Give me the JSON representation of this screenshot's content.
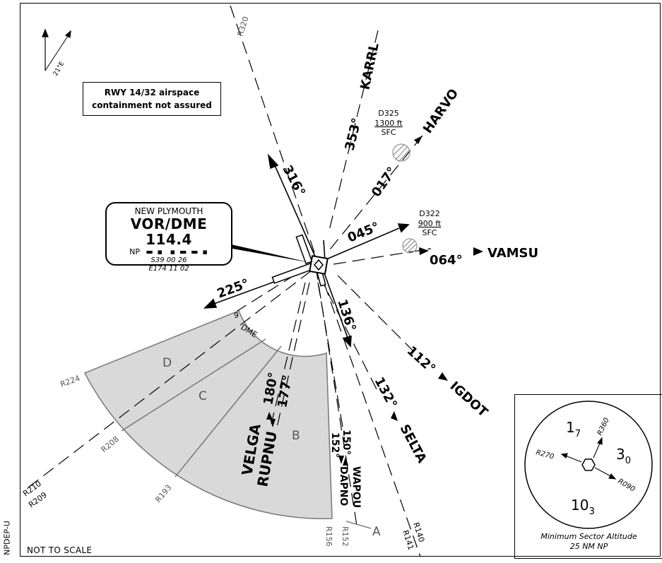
{
  "chart": {
    "side_id": "NPDEP-U",
    "not_to_scale": "NOT TO SCALE",
    "variation": "21°E",
    "airspace_note_line1": "RWY 14/32 airspace",
    "airspace_note_line2": "containment not assured"
  },
  "navaid": {
    "name": "NEW PLYMOUTH",
    "type_freq": "VOR/DME 114.4",
    "ident": "NP",
    "lat": "S39 00 26",
    "lon": "E174 11 02"
  },
  "routes": [
    {
      "heading": "353°",
      "waypoint": "KARRL"
    },
    {
      "heading": "017°",
      "waypoint": "HARVO"
    },
    {
      "heading": "045°",
      "waypoint": ""
    },
    {
      "heading": "064°",
      "waypoint": "VAMSU"
    },
    {
      "heading": "112°",
      "waypoint": "IGDOT"
    },
    {
      "heading": "132°",
      "waypoint": "SELTA"
    },
    {
      "heading": "136°",
      "waypoint": ""
    },
    {
      "heading": "150°",
      "waypoint": "WAPOU"
    },
    {
      "heading": "152°",
      "waypoint": "DAPNO"
    },
    {
      "heading": "177°",
      "waypoint": "RUPNU"
    },
    {
      "heading": "180°",
      "waypoint": "VELGA"
    },
    {
      "heading": "225°",
      "waypoint": ""
    },
    {
      "heading": "316°",
      "waypoint": ""
    }
  ],
  "restricted_areas": [
    {
      "id": "D325",
      "upper": "1300 ft",
      "lower": "SFC"
    },
    {
      "id": "D322",
      "upper": "900 ft",
      "lower": "SFC"
    }
  ],
  "radials": [
    "R320",
    "R224",
    "R208",
    "R210",
    "R209",
    "R193",
    "R156",
    "R152",
    "R140",
    "R141"
  ],
  "sectors": [
    "A",
    "B",
    "C",
    "D"
  ],
  "dme_arc": {
    "distance": "9",
    "unit": "DME"
  },
  "msa": {
    "caption_line1": "Minimum Sector Altitude",
    "caption_line2": "25 NM NP",
    "radials": [
      "R360",
      "R270",
      "R090"
    ],
    "sectors": [
      {
        "big": "1",
        "small": "7"
      },
      {
        "big": "3",
        "small": "0"
      },
      {
        "big": "10",
        "small": "3"
      }
    ]
  },
  "colors": {
    "sector_fill": "#d9d9d9",
    "sector_stroke": "#777777",
    "ink": "#000000"
  }
}
